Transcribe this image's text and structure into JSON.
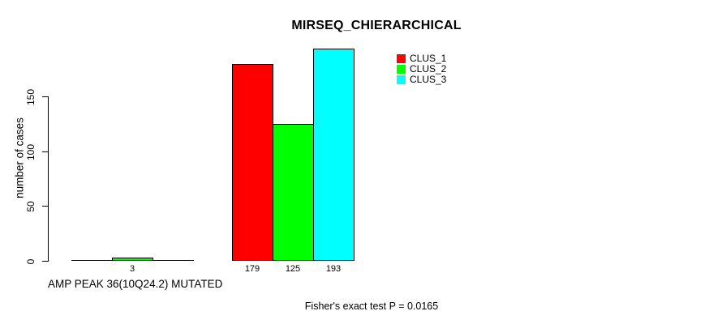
{
  "chart_data": {
    "type": "bar",
    "title": "MIRSEQ_CHIERARCHICAL",
    "ylabel": "number of cases",
    "xlabel": "AMP PEAK 36(10Q24.2) MUTATED",
    "annotation": "Fisher's exact test P = 0.0165",
    "categories": [
      "AMP PEAK 36(10Q24.2) MUTATED",
      ""
    ],
    "series": [
      {
        "name": "CLUS_1",
        "color": "#ff0000",
        "values": [
          0,
          179
        ]
      },
      {
        "name": "CLUS_2",
        "color": "#00ff00",
        "values": [
          3,
          125
        ]
      },
      {
        "name": "CLUS_3",
        "color": "#00ffff",
        "values": [
          0,
          193
        ]
      }
    ],
    "bar_labels": [
      [
        "",
        "3",
        ""
      ],
      [
        "179",
        "125",
        "193"
      ]
    ],
    "ylim": [
      0,
      200
    ],
    "yticks": [
      0,
      50,
      100,
      150
    ],
    "grid": false,
    "legend_position": "top-right-inside",
    "colors": {
      "bar_border": "#000000",
      "axis": "#000000",
      "background": "#ffffff",
      "text": "#000000"
    }
  }
}
